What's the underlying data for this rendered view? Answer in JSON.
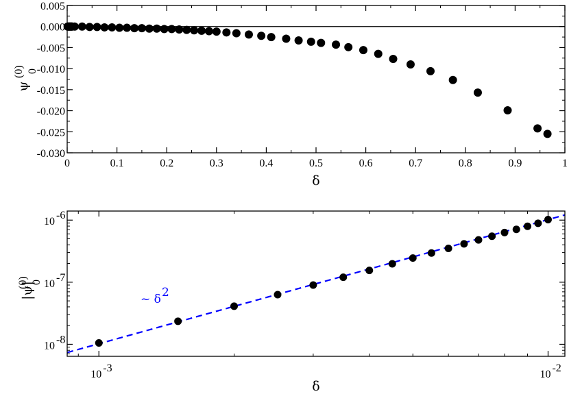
{
  "chart_data": [
    {
      "type": "scatter",
      "xlabel": "δ",
      "ylabel": "ψ",
      "ylabel_sup": "(0)",
      "ylabel_sub": "0",
      "xlim": [
        0,
        1
      ],
      "ylim": [
        -0.03,
        0.005
      ],
      "xticks": [
        0,
        0.1,
        0.2,
        0.3,
        0.4,
        0.5,
        0.6,
        0.7,
        0.8,
        0.9,
        1
      ],
      "xtick_labels": [
        "0",
        "0.1",
        "0.2",
        "0.3",
        "0.4",
        "0.5",
        "0.6",
        "0.7",
        "0.8",
        "0.9",
        "1"
      ],
      "yticks": [
        0.005,
        0,
        -0.005,
        -0.01,
        -0.015,
        -0.02,
        -0.025,
        -0.03
      ],
      "ytick_labels": [
        "0.005",
        "0.000",
        "-0.005",
        "-0.010",
        "-0.015",
        "-0.020",
        "-0.025",
        "-0.030"
      ],
      "reference_line_y": 0,
      "series": [
        {
          "x": [
            0.001,
            0.002,
            0.003,
            0.004,
            0.005,
            0.006,
            0.007,
            0.008,
            0.009,
            0.01,
            0.015,
            0.03,
            0.045,
            0.06,
            0.075,
            0.09,
            0.105,
            0.12,
            0.135,
            0.15,
            0.165,
            0.18,
            0.195,
            0.21,
            0.225,
            0.24,
            0.255,
            0.27,
            0.285,
            0.3,
            0.32,
            0.34,
            0.365,
            0.39,
            0.41,
            0.44,
            0.465,
            0.49,
            0.51,
            0.54,
            0.565,
            0.595,
            0.625,
            0.655,
            0.69,
            0.73,
            0.775,
            0.825,
            0.885,
            0.945,
            0.965
          ],
          "y": [
            0,
            0,
            0,
            0,
            0,
            0,
            0,
            0,
            0,
            0,
            0,
            0,
            -0.0001,
            -0.0001,
            -0.0002,
            -0.0002,
            -0.0003,
            -0.0003,
            -0.0004,
            -0.0004,
            -0.0005,
            -0.0005,
            -0.0006,
            -0.0006,
            -0.0007,
            -0.0008,
            -0.0009,
            -0.001,
            -0.0011,
            -0.0012,
            -0.0014,
            -0.0016,
            -0.0019,
            -0.0022,
            -0.0025,
            -0.0029,
            -0.0033,
            -0.0036,
            -0.0039,
            -0.0043,
            -0.0049,
            -0.0056,
            -0.0065,
            -0.0077,
            -0.009,
            -0.0106,
            -0.0127,
            -0.0157,
            -0.0199,
            -0.0242,
            -0.0255
          ],
          "color": "#000000"
        }
      ]
    },
    {
      "type": "scatter",
      "scale": "log-log",
      "xlabel": "δ",
      "ylabel": "|ψ|",
      "ylabel_sup": "(0)",
      "ylabel_sub": "0",
      "xlim": [
        0.00085,
        0.0109
      ],
      "ylim": [
        6.4e-09,
        1.4e-06
      ],
      "xtick_labels": [
        {
          "value": 0.001,
          "base": "10",
          "exp": "-3"
        },
        {
          "value": 0.01,
          "base": "10",
          "exp": "-2"
        }
      ],
      "ytick_labels": [
        {
          "value": 1e-06,
          "base": "10",
          "exp": "-6"
        },
        {
          "value": 1e-07,
          "base": "10",
          "exp": "-7"
        },
        {
          "value": 1e-08,
          "base": "10",
          "exp": "-8"
        }
      ],
      "series": [
        {
          "x": [
            0.001,
            0.0015,
            0.002,
            0.0025,
            0.003,
            0.0035,
            0.004,
            0.0045,
            0.005,
            0.0055,
            0.006,
            0.0065,
            0.007,
            0.0075,
            0.008,
            0.0085,
            0.009,
            0.0095,
            0.01
          ],
          "y": [
            1.05e-08,
            2.35e-08,
            4.1e-08,
            6.3e-08,
            9e-08,
            1.2e-07,
            1.55e-07,
            1.98e-07,
            2.45e-07,
            2.95e-07,
            3.5e-07,
            4.15e-07,
            4.8e-07,
            5.5e-07,
            6.3e-07,
            7.1e-07,
            7.95e-07,
            8.9e-07,
            1.02e-06
          ],
          "color": "#000000"
        }
      ],
      "fit_line": {
        "coef": 0.0102,
        "power": 2,
        "color": "#0000ff",
        "style": "dashed"
      },
      "annotation": {
        "text_prefix": "~ δ",
        "text_sup": "2",
        "color": "#0000ff"
      }
    }
  ]
}
